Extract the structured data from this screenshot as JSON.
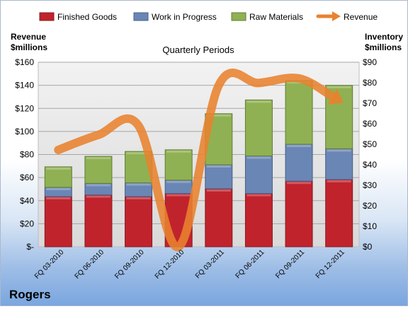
{
  "chart_data": {
    "type": "bar",
    "title": "Quarterly Periods",
    "company": "Rogers",
    "categories": [
      "FQ 03-2010",
      "FQ 06-2010",
      "FQ 09-2010",
      "FQ 12-2010",
      "FQ 03-2011",
      "FQ 06-2011",
      "FQ 09-2011",
      "FQ 12-2011"
    ],
    "stacked": true,
    "left_axis": {
      "label_line1": "Revenue",
      "label_line2": "$millions",
      "ylim": [
        0,
        160
      ],
      "ticks": [
        0,
        20,
        40,
        60,
        80,
        100,
        120,
        140,
        160
      ],
      "tick_labels": [
        "$-",
        "$20",
        "$40",
        "$60",
        "$80",
        "$100",
        "$120",
        "$140",
        "$160"
      ]
    },
    "right_axis": {
      "label_line1": "Inventory",
      "label_line2": "$millions",
      "ylim": [
        0,
        90
      ],
      "ticks": [
        0,
        10,
        20,
        30,
        40,
        50,
        60,
        70,
        80,
        90
      ],
      "tick_labels": [
        "$0",
        "$10",
        "$20",
        "$30",
        "$40",
        "$50",
        "$60",
        "$70",
        "$80",
        "$90"
      ]
    },
    "series": [
      {
        "name": "Finished Goods",
        "axis": "right",
        "color": "#c0232c",
        "values": [
          24.5,
          25.3,
          24.5,
          26.0,
          28.3,
          26.0,
          32.0,
          32.8
        ]
      },
      {
        "name": "Work in Progress",
        "axis": "right",
        "color": "#6a86b5",
        "values": [
          4.5,
          5.6,
          6.7,
          6.5,
          11.7,
          18.3,
          18.0,
          15.0
        ]
      },
      {
        "name": "Raw Materials",
        "axis": "right",
        "color": "#8fb153",
        "values": [
          10.0,
          13.2,
          15.3,
          14.8,
          24.9,
          27.3,
          31.0,
          30.9
        ]
      }
    ],
    "line_series": {
      "name": "Revenue",
      "axis": "left",
      "color": "#e8822f",
      "values": [
        84,
        97,
        105,
        0,
        140,
        142,
        146,
        127
      ]
    },
    "grid": true,
    "legend_position": "top"
  }
}
